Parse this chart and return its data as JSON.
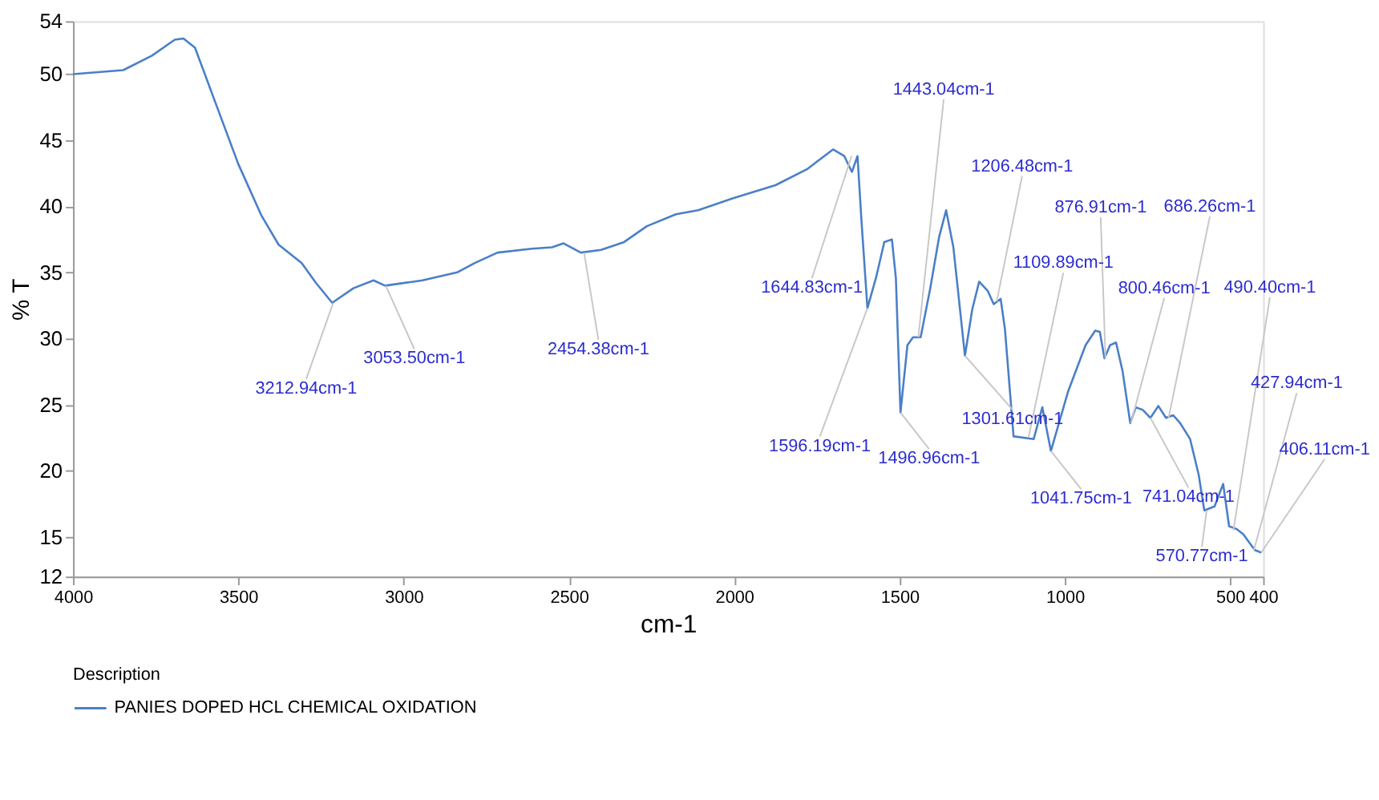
{
  "chart_data": {
    "type": "line",
    "xlabel": "cm-1",
    "ylabel": "% T",
    "legend_title": "Description",
    "legend": "bottom",
    "grid": false,
    "marker": "none",
    "line_style": "solid",
    "xlim": [
      4000,
      400
    ],
    "xticks": [
      4000,
      3500,
      3000,
      2500,
      2000,
      1500,
      1000,
      500,
      400
    ],
    "ylim": [
      12,
      54
    ],
    "yticks": [
      12,
      15,
      20,
      25,
      30,
      35,
      40,
      45,
      50,
      54
    ],
    "series": [
      {
        "name": "PANIES DOPED HCL CHEMICAL OXIDATION",
        "color": "#4a7fc8",
        "x": [
          4000,
          3848,
          3761,
          3692,
          3666,
          3631,
          3570,
          3500,
          3430,
          3378,
          3308,
          3265,
          3216,
          3152,
          3091,
          3056,
          2943,
          2838,
          2786,
          2716,
          2612,
          2551,
          2516,
          2464,
          2403,
          2333,
          2264,
          2176,
          2109,
          2005,
          1875,
          1780,
          1701,
          1667,
          1644,
          1627,
          1615,
          1597,
          1571,
          1546,
          1523,
          1511,
          1497,
          1476,
          1459,
          1436,
          1407,
          1380,
          1359,
          1337,
          1302,
          1280,
          1259,
          1233,
          1215,
          1194,
          1181,
          1155,
          1094,
          1068,
          1042,
          990,
          937,
          908,
          894,
          880,
          863,
          845,
          825,
          802,
          785,
          764,
          741,
          717,
          694,
          672,
          651,
          621,
          595,
          578,
          547,
          521,
          503,
          481,
          460,
          443,
          425,
          405
        ],
        "values": [
          50,
          50.3,
          51.4,
          52.6,
          52.7,
          52.0,
          47.9,
          43.2,
          39.3,
          37.1,
          35.7,
          34.2,
          32.7,
          33.8,
          34.4,
          34.0,
          34.4,
          35.0,
          35.7,
          36.5,
          36.8,
          36.9,
          37.2,
          36.5,
          36.7,
          37.3,
          38.5,
          39.4,
          39.7,
          40.6,
          41.6,
          42.8,
          44.3,
          43.8,
          42.6,
          43.8,
          38.9,
          32.3,
          34.6,
          37.3,
          37.5,
          34.6,
          24.4,
          29.5,
          30.1,
          30.1,
          33.8,
          37.7,
          39.7,
          36.9,
          28.7,
          32.2,
          34.3,
          33.6,
          32.6,
          33.0,
          30.7,
          22.6,
          22.4,
          24.8,
          21.5,
          26.0,
          29.5,
          30.6,
          30.5,
          28.5,
          29.5,
          29.7,
          27.5,
          23.6,
          24.8,
          24.6,
          24.0,
          24.9,
          24.0,
          24.2,
          23.6,
          22.4,
          19.7,
          17.0,
          17.3,
          19.0,
          15.8,
          15.6,
          15.2,
          14.6,
          14.0,
          13.8
        ]
      }
    ],
    "annotations": [
      {
        "text": "3212.94cm-1",
        "x": 3213,
        "y": 32.7
      },
      {
        "text": "3053.50cm-1",
        "x": 3054,
        "y": 34.0
      },
      {
        "text": "2454.38cm-1",
        "x": 2454,
        "y": 36.5
      },
      {
        "text": "1644.83cm-1",
        "x": 1645,
        "y": 43.8
      },
      {
        "text": "1596.19cm-1",
        "x": 1597,
        "y": 32.3
      },
      {
        "text": "1496.96cm-1",
        "x": 1497,
        "y": 24.4
      },
      {
        "text": "1443.04cm-1",
        "x": 1443,
        "y": 30.1
      },
      {
        "text": "1301.61cm-1",
        "x": 1302,
        "y": 28.7
      },
      {
        "text": "1206.48cm-1",
        "x": 1206,
        "y": 32.8
      },
      {
        "text": "1109.89cm-1",
        "x": 1110,
        "y": 22.5
      },
      {
        "text": "1041.75cm-1",
        "x": 1042,
        "y": 21.5
      },
      {
        "text": "876.91cm-1",
        "x": 877,
        "y": 28.5
      },
      {
        "text": "800.46cm-1",
        "x": 800,
        "y": 23.6
      },
      {
        "text": "741.04cm-1",
        "x": 741,
        "y": 24.0
      },
      {
        "text": "686.26cm-1",
        "x": 686,
        "y": 24.0
      },
      {
        "text": "570.77cm-1",
        "x": 571,
        "y": 17.0
      },
      {
        "text": "490.40cm-1",
        "x": 490,
        "y": 15.5
      },
      {
        "text": "427.94cm-1",
        "x": 428,
        "y": 14.0
      },
      {
        "text": "406.11cm-1",
        "x": 406,
        "y": 13.8
      }
    ]
  }
}
